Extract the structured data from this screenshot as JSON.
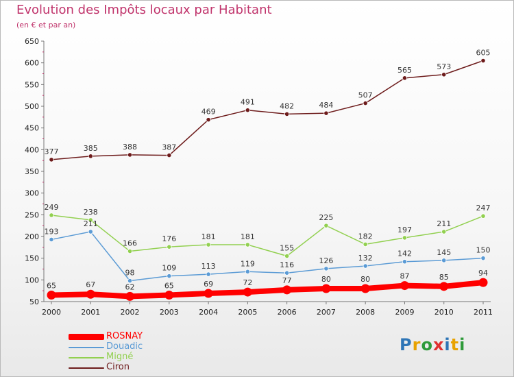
{
  "header": {
    "title": "Evolution des Impôts locaux par Habitant",
    "subtitle": "(en € et par an)"
  },
  "colors": {
    "title": "#c0336b",
    "ROSNAY": "#ff0000",
    "Douadic": "#5b9bd5",
    "Migné": "#92d050",
    "Ciron": "#6d1b1b"
  },
  "chart_data": {
    "type": "line",
    "title": "Evolution des Impôts locaux par Habitant",
    "subtitle": "(en € et par an)",
    "xlabel": "",
    "ylabel": "",
    "x": [
      "2000",
      "2001",
      "2002",
      "2003",
      "2004",
      "2005",
      "2006",
      "2007",
      "2008",
      "2009",
      "2010",
      "2011"
    ],
    "ylim": [
      50,
      650
    ],
    "yticks": [
      50,
      100,
      150,
      200,
      250,
      300,
      350,
      400,
      450,
      500,
      550,
      600,
      650
    ],
    "grid": false,
    "legend_position": "bottom-left",
    "series": [
      {
        "name": "ROSNAY",
        "color": "#ff0000",
        "values": [
          65,
          67,
          62,
          65,
          69,
          72,
          77,
          80,
          80,
          87,
          85,
          94
        ]
      },
      {
        "name": "Douadic",
        "color": "#5b9bd5",
        "values": [
          193,
          211,
          98,
          109,
          113,
          119,
          116,
          126,
          132,
          142,
          145,
          150
        ]
      },
      {
        "name": "Migné",
        "color": "#92d050",
        "values": [
          249,
          238,
          166,
          176,
          181,
          181,
          155,
          225,
          182,
          197,
          211,
          247
        ]
      },
      {
        "name": "Ciron",
        "color": "#6d1b1b",
        "values": [
          377,
          385,
          388,
          387,
          469,
          491,
          482,
          484,
          507,
          565,
          573,
          605
        ]
      }
    ]
  },
  "legend": {
    "items": [
      {
        "label": "ROSNAY",
        "color": "#ff0000"
      },
      {
        "label": "Douadic",
        "color": "#5b9bd5"
      },
      {
        "label": "Migné",
        "color": "#92d050"
      },
      {
        "label": "Ciron",
        "color": "#6d1b1b"
      }
    ]
  },
  "logo": {
    "letters": [
      "P",
      "r",
      "o",
      "x",
      "i",
      "t",
      "i"
    ],
    "colors": [
      "#2e75b6",
      "#e8a200",
      "#2e9a3a",
      "#e03030",
      "#2e75b6",
      "#e8a200",
      "#2e9a3a"
    ]
  }
}
